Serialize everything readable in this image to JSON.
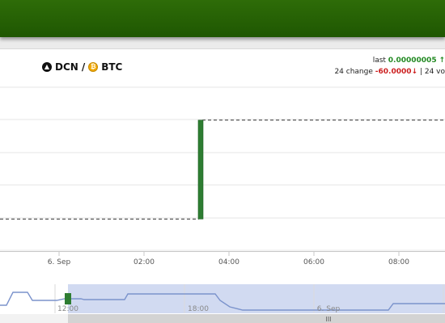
{
  "header": {
    "bar_color": "#2a6506"
  },
  "pair": {
    "base": "DCN",
    "separator": "/",
    "quote": "BTC",
    "base_icon": "dcn-icon",
    "quote_icon": "btc-icon"
  },
  "stats": {
    "last_label": "last",
    "last_value": "0.00000005",
    "change_label": "24 change",
    "change_value": "-60.0000",
    "separator": "|",
    "volume_label": "24 vo"
  },
  "chart_data": {
    "type": "candlestick",
    "x_ticks": [
      "6. Sep",
      "02:00",
      "04:00",
      "06:00",
      "08:00"
    ],
    "before_level": 2,
    "after_level": 8,
    "ylim": [
      0,
      10
    ],
    "candles": [
      {
        "time": "03:20",
        "open": 2,
        "close": 8,
        "direction": "up"
      }
    ],
    "colors": {
      "up": "#2e7d32",
      "grid": "#e6e6e6",
      "dashed": "#333333"
    }
  },
  "navigator": {
    "x_ticks": [
      "12:00",
      "18:00",
      "6. Sep"
    ],
    "handle_icon": "grip-icon",
    "series_color": "#7b93cc",
    "range_color": "#c9d4ee"
  }
}
